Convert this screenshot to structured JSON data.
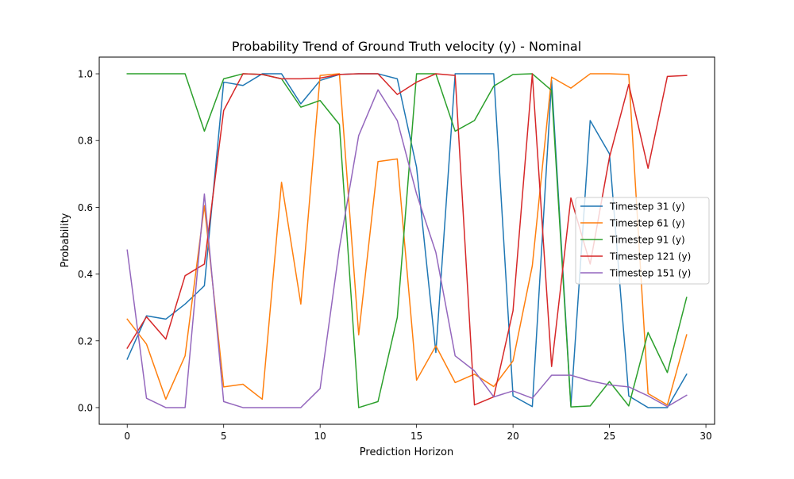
{
  "chart_data": {
    "type": "line",
    "title": "Probability Trend of Ground Truth velocity (y) - Nominal",
    "xlabel": "Prediction Horizon",
    "ylabel": "Probability",
    "xlim": [
      -1.45,
      30.45
    ],
    "ylim": [
      -0.05,
      1.05
    ],
    "xticks": [
      0,
      5,
      10,
      15,
      20,
      25,
      30
    ],
    "xtick_labels": [
      "0",
      "5",
      "10",
      "15",
      "20",
      "25",
      "30"
    ],
    "yticks": [
      0.0,
      0.2,
      0.4,
      0.6,
      0.8,
      1.0
    ],
    "ytick_labels": [
      "0.0",
      "0.2",
      "0.4",
      "0.6",
      "0.8",
      "1.0"
    ],
    "grid": false,
    "legend_position": "center-right",
    "x": [
      0,
      1,
      2,
      3,
      4,
      5,
      6,
      7,
      8,
      9,
      10,
      11,
      12,
      13,
      14,
      15,
      16,
      17,
      18,
      19,
      20,
      21,
      22,
      23,
      24,
      25,
      26,
      27,
      28,
      29
    ],
    "series": [
      {
        "name": "Timestep 31 (y)",
        "color": "#1f77b4",
        "values": [
          0.145,
          0.275,
          0.265,
          0.31,
          0.365,
          0.975,
          0.965,
          1.0,
          1.0,
          0.91,
          0.98,
          0.998,
          1.0,
          1.0,
          0.985,
          0.72,
          0.165,
          1.0,
          1.0,
          1.0,
          0.035,
          0.003,
          0.98,
          0.005,
          0.86,
          0.76,
          0.035,
          0.0,
          0.0,
          0.1
        ]
      },
      {
        "name": "Timestep 61 (y)",
        "color": "#ff7f0e",
        "values": [
          0.265,
          0.19,
          0.025,
          0.155,
          0.605,
          0.062,
          0.07,
          0.025,
          0.675,
          0.31,
          0.995,
          1.0,
          0.218,
          0.737,
          0.745,
          0.082,
          0.185,
          0.075,
          0.1,
          0.063,
          0.14,
          0.425,
          0.99,
          0.957,
          1.0,
          1.0,
          0.998,
          0.042,
          0.008,
          0.218
        ]
      },
      {
        "name": "Timestep 91 (y)",
        "color": "#2ca02c",
        "values": [
          1.0,
          1.0,
          1.0,
          1.0,
          0.828,
          0.985,
          1.0,
          0.998,
          0.985,
          0.9,
          0.92,
          0.848,
          0.0,
          0.018,
          0.27,
          1.0,
          1.0,
          0.828,
          0.86,
          0.963,
          0.998,
          1.0,
          0.95,
          0.002,
          0.005,
          0.078,
          0.005,
          0.225,
          0.105,
          0.33
        ]
      },
      {
        "name": "Timestep 121 (y)",
        "color": "#d62728",
        "values": [
          0.178,
          0.272,
          0.205,
          0.395,
          0.43,
          0.89,
          1.0,
          0.998,
          0.985,
          0.985,
          0.987,
          0.998,
          1.0,
          1.0,
          0.938,
          0.975,
          1.0,
          0.995,
          0.008,
          0.032,
          0.29,
          1.0,
          0.123,
          0.628,
          0.43,
          0.75,
          0.968,
          0.717,
          0.992,
          0.995
        ]
      },
      {
        "name": "Timestep 151 (y)",
        "color": "#9467bd",
        "values": [
          0.472,
          0.028,
          0.0,
          0.0,
          0.64,
          0.018,
          0.0,
          0.0,
          0.0,
          0.0,
          0.057,
          0.478,
          0.815,
          0.952,
          0.86,
          0.64,
          0.465,
          0.155,
          0.11,
          0.032,
          0.05,
          0.028,
          0.097,
          0.097,
          0.08,
          0.068,
          0.062,
          0.035,
          0.003,
          0.037
        ]
      }
    ]
  }
}
